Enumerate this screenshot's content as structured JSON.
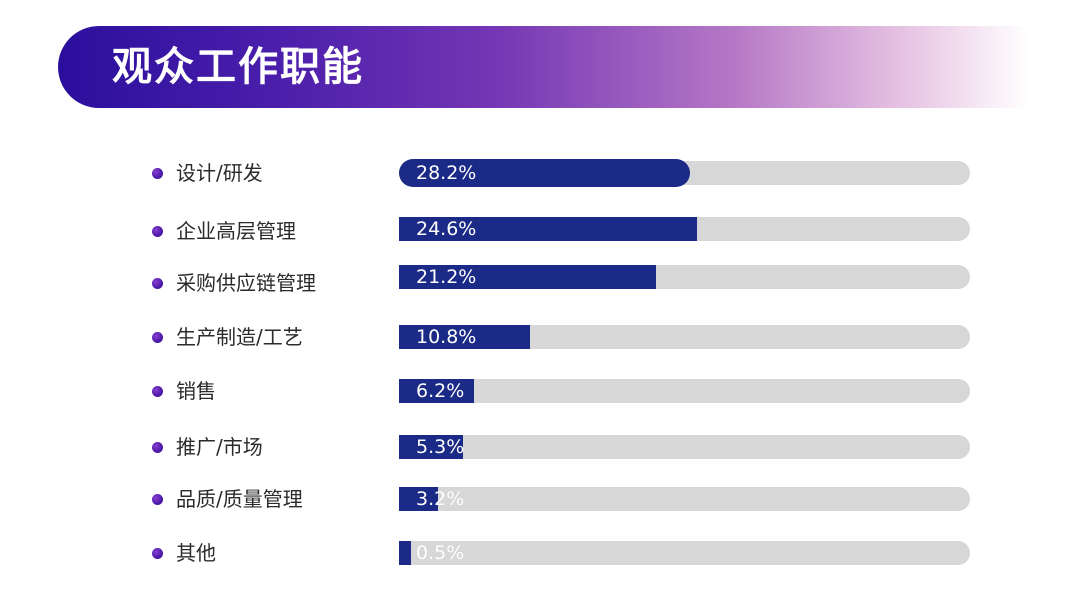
{
  "title": "观众工作职能",
  "chart_data": {
    "type": "bar",
    "orientation": "horizontal",
    "title": "观众工作职能",
    "xlim": [
      0,
      100
    ],
    "categories": [
      "设计/研发",
      "企业高层管理",
      "采购供应链管理",
      "生产制造/工艺",
      "销售",
      "推广/市场",
      "品质/质量管理",
      "其他"
    ],
    "values": [
      28.2,
      24.6,
      21.2,
      10.8,
      6.2,
      5.3,
      3.2,
      0.5
    ],
    "value_labels": [
      "28.2%",
      "24.6%",
      "21.2%",
      "10.8%",
      "6.2%",
      "5.3%",
      "3.2%",
      "0.5%"
    ],
    "bar_color": "#1b2a86",
    "track_color": "#d7d7d7",
    "bullet_color": "#4b1aa8"
  }
}
